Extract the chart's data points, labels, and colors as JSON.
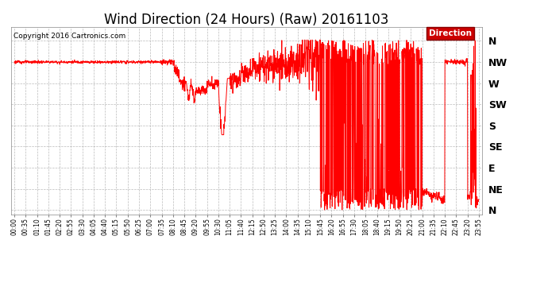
{
  "title": "Wind Direction (24 Hours) (Raw) 20161103",
  "copyright": "Copyright 2016 Cartronics.com",
  "legend_label": "Direction",
  "legend_bg": "#CC0000",
  "line_color": "#FF0000",
  "bg_color": "#ffffff",
  "plot_bg": "#ffffff",
  "ytick_labels": [
    "N",
    "NW",
    "W",
    "SW",
    "S",
    "SE",
    "E",
    "NE",
    "N"
  ],
  "ytick_values": [
    360,
    315,
    270,
    225,
    180,
    135,
    90,
    45,
    0
  ],
  "ylim": [
    -10,
    390
  ],
  "grid_color": "#AAAAAA",
  "title_fontsize": 12,
  "time_labels": [
    "00:00",
    "00:35",
    "01:10",
    "01:45",
    "02:20",
    "02:55",
    "03:30",
    "04:05",
    "04:40",
    "05:15",
    "05:50",
    "06:25",
    "07:00",
    "07:35",
    "08:10",
    "08:45",
    "09:20",
    "09:55",
    "10:30",
    "11:05",
    "11:40",
    "12:15",
    "12:50",
    "13:25",
    "14:00",
    "14:35",
    "15:10",
    "15:45",
    "16:20",
    "16:55",
    "17:30",
    "18:05",
    "18:40",
    "19:15",
    "19:50",
    "20:25",
    "21:00",
    "21:35",
    "22:10",
    "22:45",
    "23:20",
    "23:55"
  ]
}
